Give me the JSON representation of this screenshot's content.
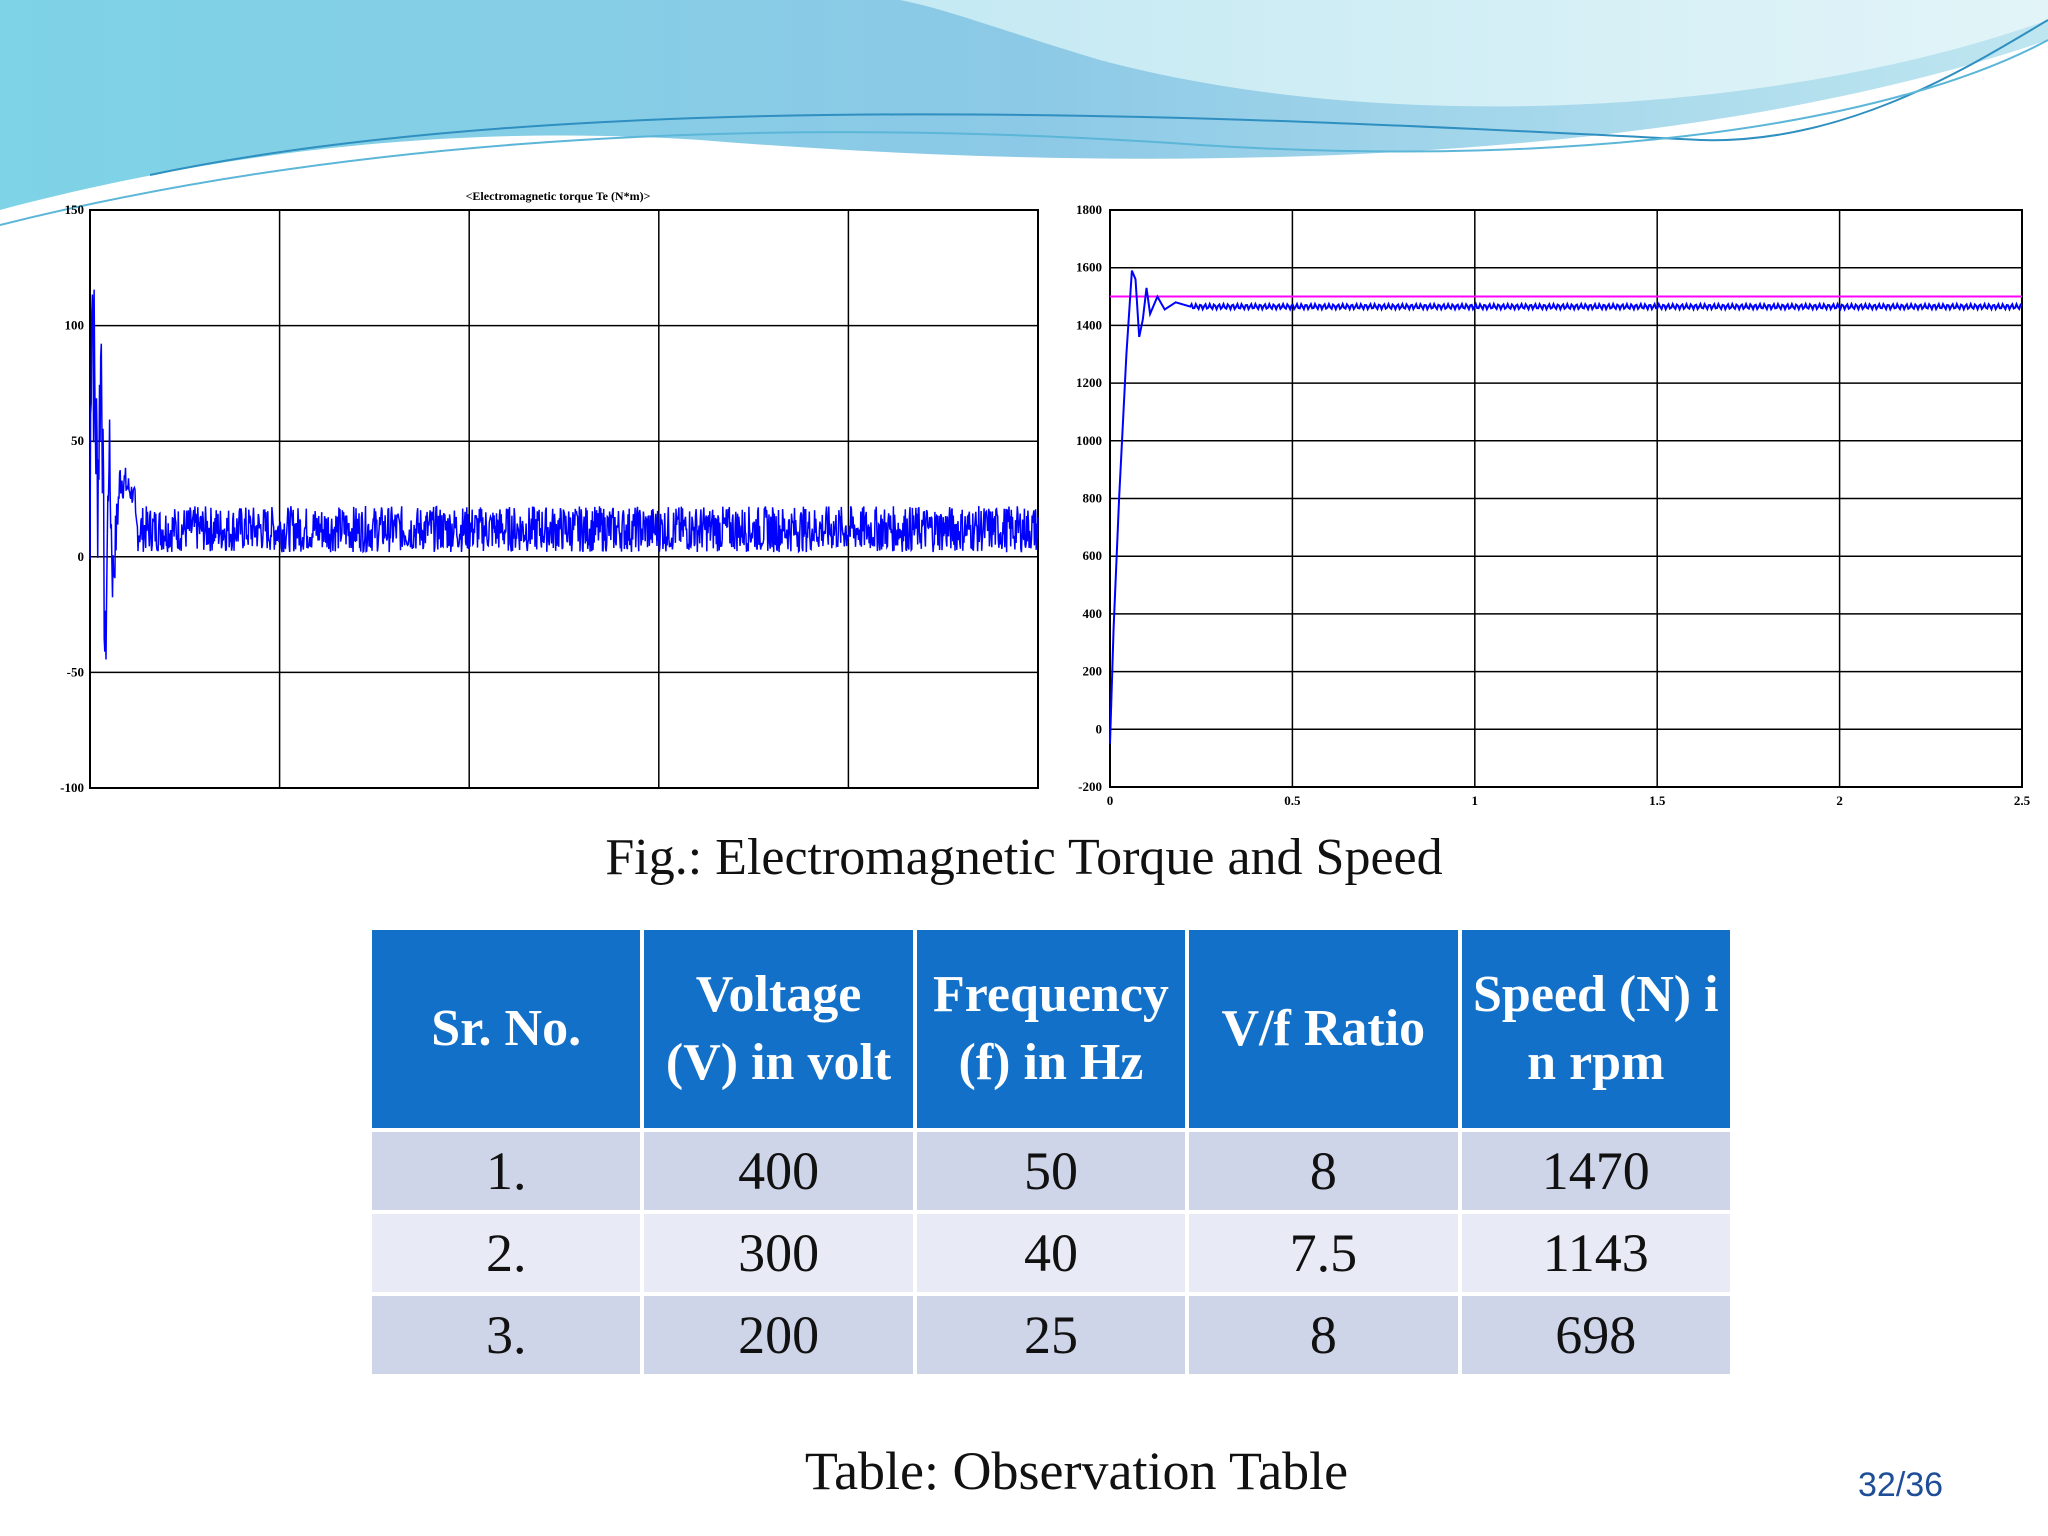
{
  "theme": {
    "accent": "#1270c8",
    "row_odd": "#cfd5e9",
    "row_even": "#e8ebf5",
    "trace": "#0000ff",
    "reference": "#ff00ff"
  },
  "chart_data": [
    {
      "type": "line",
      "title": "<Electromagnetic torque Te (N*m)>",
      "ylim": [
        -100,
        150
      ],
      "yticks": [
        "150",
        "100",
        "50",
        "0",
        "-50",
        "-100"
      ],
      "x_divisions": 5,
      "grid": true,
      "series": [
        {
          "values_description_free": true,
          "points": [
            [
              0,
              0
            ],
            [
              0.004,
              140
            ],
            [
              0.01,
              85
            ],
            [
              0.02,
              30
            ],
            [
              0.03,
              95
            ],
            [
              0.04,
              -52
            ],
            [
              0.05,
              50
            ],
            [
              0.06,
              -10
            ],
            [
              0.08,
              35
            ],
            [
              0.12,
              25
            ],
            [
              0.2,
              18
            ],
            [
              0.5,
              12
            ],
            [
              1.0,
              12
            ],
            [
              2.5,
              12
            ]
          ]
        }
      ],
      "steady_band": [
        2,
        22
      ]
    },
    {
      "type": "line",
      "title": "",
      "xlim": [
        0,
        2.5
      ],
      "ylim": [
        -200,
        1800
      ],
      "xticks": [
        "0",
        "0.5",
        "1",
        "1.5",
        "2",
        "2.5"
      ],
      "yticks": [
        "1800",
        "1600",
        "1400",
        "1200",
        "1000",
        "800",
        "600",
        "400",
        "200",
        "0",
        "-200"
      ],
      "grid": true,
      "series": [
        {
          "points": [
            [
              0,
              -50
            ],
            [
              0.01,
              350
            ],
            [
              0.025,
              800
            ],
            [
              0.045,
              1300
            ],
            [
              0.06,
              1590
            ],
            [
              0.07,
              1560
            ],
            [
              0.08,
              1360
            ],
            [
              0.09,
              1420
            ],
            [
              0.1,
              1530
            ],
            [
              0.11,
              1440
            ],
            [
              0.13,
              1500
            ],
            [
              0.15,
              1455
            ],
            [
              0.18,
              1480
            ],
            [
              0.22,
              1465
            ],
            [
              2.5,
              1465
            ]
          ]
        },
        {
          "reference": true,
          "points": [
            [
              0,
              1500
            ],
            [
              2.5,
              1500
            ]
          ]
        }
      ]
    }
  ],
  "figure_caption": "Fig.: Electromagnetic Torque and Speed",
  "table": {
    "headers": [
      "Sr. No.",
      "Voltage (V) in volt",
      "Frequency (f) in Hz",
      "V/f Ratio",
      "Speed (N) in rpm"
    ],
    "rows": [
      [
        "1.",
        "400",
        "50",
        "8",
        "1470"
      ],
      [
        "2.",
        "300",
        "40",
        "7.5",
        "1143"
      ],
      [
        "3.",
        "200",
        "25",
        "8",
        "698"
      ]
    ]
  },
  "table_caption": "Table: Observation Table",
  "page_number": "32/36"
}
